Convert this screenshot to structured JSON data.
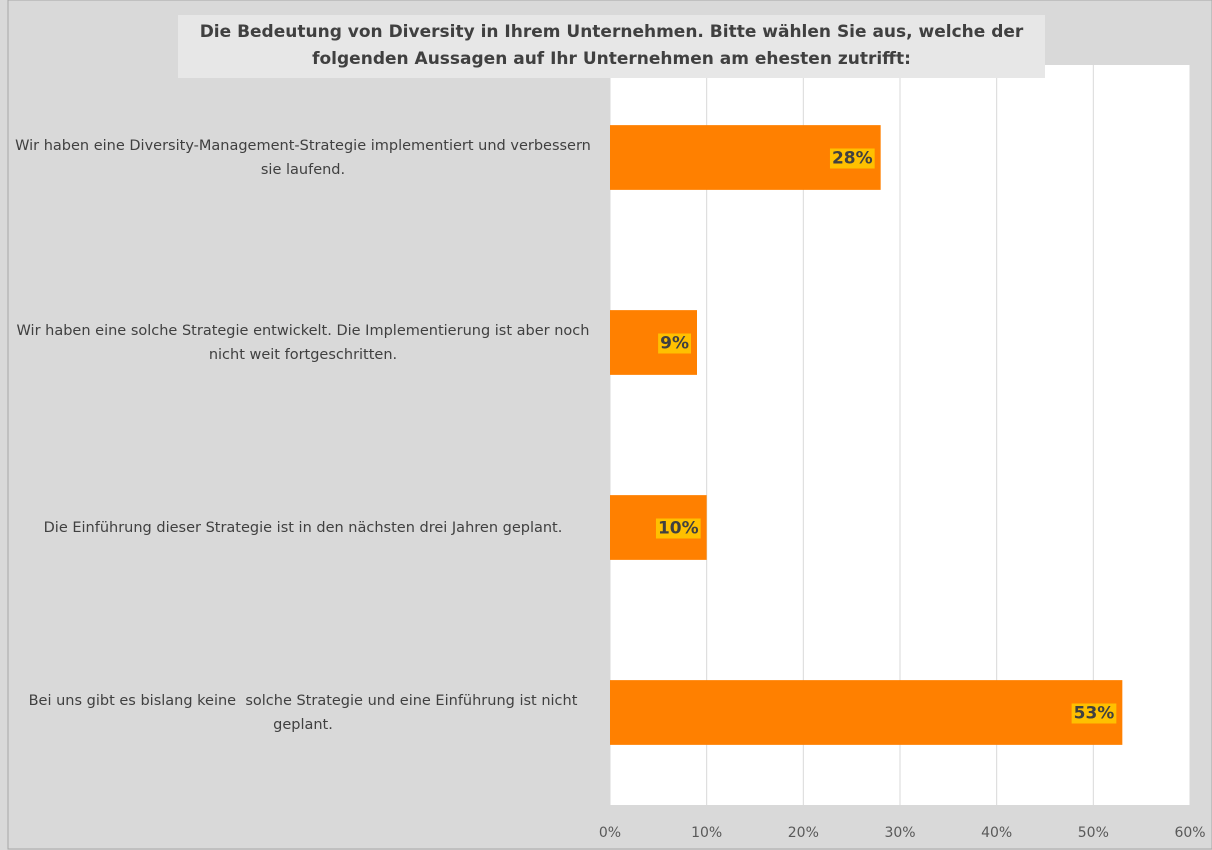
{
  "chart_data": {
    "type": "bar",
    "orientation": "horizontal",
    "title": "Die Bedeutung von Diversity in Ihrem Unternehmen. Bitte wählen Sie aus, welche der folgenden Aussagen auf Ihr Unternehmen am ehesten zutrifft:",
    "categories": [
      "Wir haben eine Diversity-Management-Strategie implementiert und verbessern sie laufend.",
      "Wir haben eine solche Strategie entwickelt. Die Implementierung ist aber noch nicht weit fortgeschritten.",
      "Die Einführung dieser Strategie ist in den nächsten drei Jahren geplant.",
      "Bei uns gibt es bislang keine  solche Strategie und eine Einführung ist nicht geplant."
    ],
    "values": [
      28,
      9,
      10,
      53
    ],
    "value_labels": [
      "28%",
      "9%",
      "10%",
      "53%"
    ],
    "color": "#ff8000",
    "xlim": [
      0,
      60
    ],
    "xticks": [
      {
        "value": 0,
        "label": "0%"
      },
      {
        "value": 10,
        "label": "10%"
      },
      {
        "value": 20,
        "label": "20%"
      },
      {
        "value": 30,
        "label": "30%"
      },
      {
        "value": 40,
        "label": "40%"
      },
      {
        "value": 50,
        "label": "50%"
      },
      {
        "value": 60,
        "label": "60%"
      }
    ],
    "grid": true
  }
}
